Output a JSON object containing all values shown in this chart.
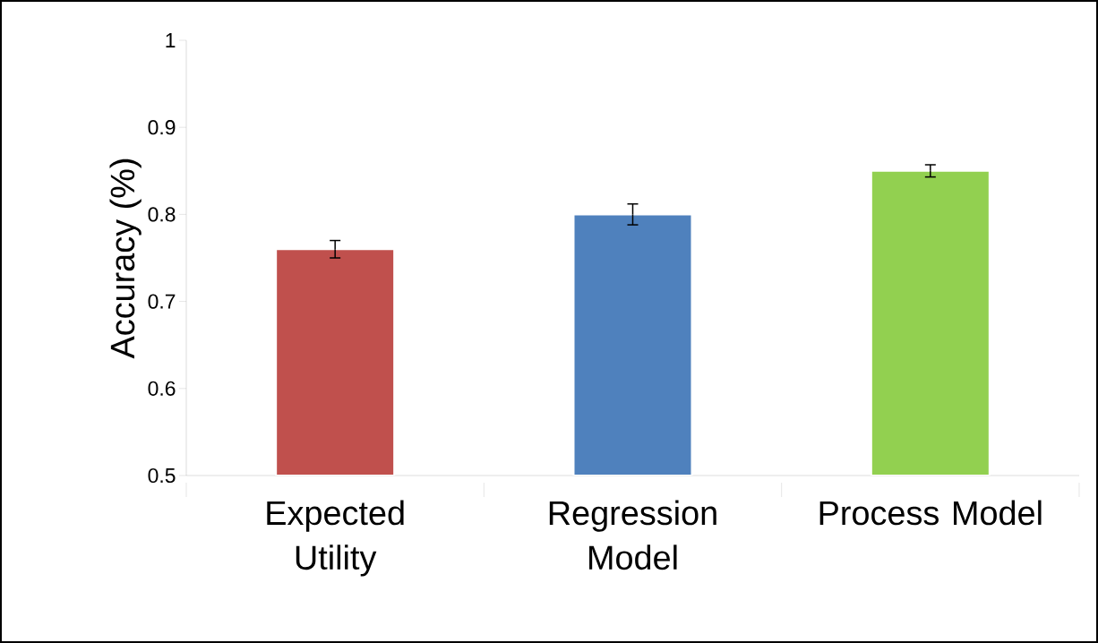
{
  "chart_data": {
    "type": "bar",
    "ylabel": "Accuracy (%)",
    "categories": [
      "Expected Utility",
      "Regression Model",
      "Process Model"
    ],
    "values": [
      0.76,
      0.8,
      0.85
    ],
    "errors": [
      0.01,
      0.012,
      0.007
    ],
    "colors": [
      "#c0504d",
      "#4f81bd",
      "#92d050"
    ],
    "ylim": [
      0.5,
      1
    ],
    "yticks": [
      0.5,
      0.6,
      0.7,
      0.8,
      0.9,
      1
    ]
  }
}
